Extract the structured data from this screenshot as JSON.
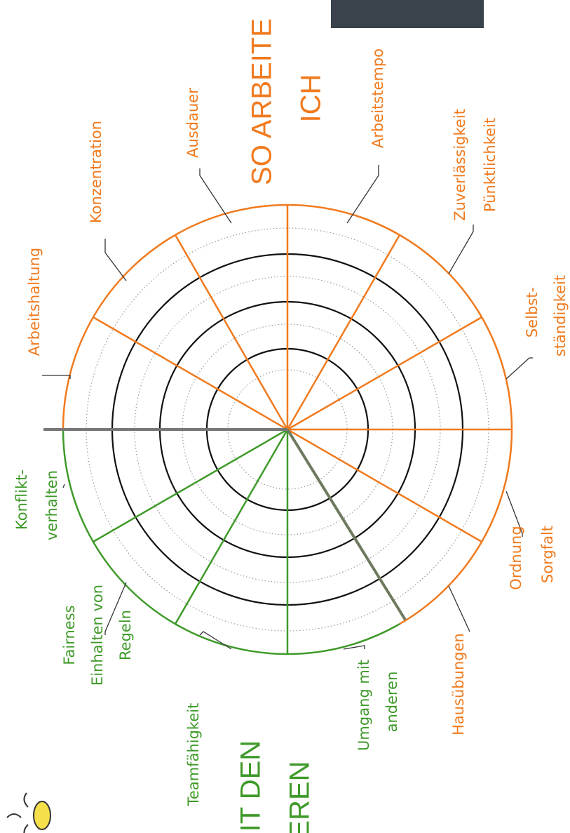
{
  "work": {
    "heading": [
      "SO ARBEITE",
      "ICH"
    ],
    "labels": [
      "Arbeitshaltung",
      "Konzentration",
      "Ausdauer",
      "Arbeitstempo",
      [
        "Zuverlässigkeit",
        "Pünktlichkeit"
      ],
      [
        "Selbst-",
        "ständigkeit"
      ],
      [
        "Ordnung",
        "Sorgfalt"
      ],
      "Hausübungen"
    ]
  },
  "social": {
    "heading": [
      "IT DEN",
      "EREN"
    ],
    "labels": [
      [
        "Umgang mit",
        "anderen"
      ],
      "Teamfähigkeit",
      [
        "Fairness",
        "Einhalten von",
        "Regeln"
      ],
      [
        "Konflikt-",
        "verhalten"
      ]
    ]
  }
}
